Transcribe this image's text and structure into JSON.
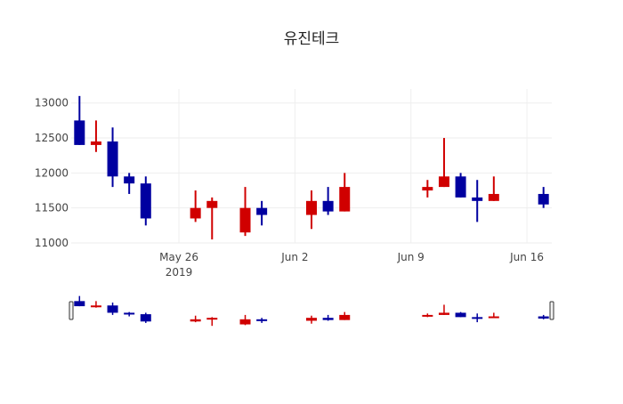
{
  "chart_data": {
    "type": "candlestick",
    "title": "유진테크",
    "ylim": [
      11000,
      13200
    ],
    "yticks": [
      11000,
      11500,
      12000,
      12500,
      13000
    ],
    "ytick_labels": [
      "11000",
      "11500",
      "12000",
      "12500",
      "13000"
    ],
    "xrange": [
      "2019-05-19T12:00",
      "2019-06-17T12:00"
    ],
    "xticks": [
      {
        "date": "2019-05-26",
        "label": "May 26",
        "sublabel": "2019"
      },
      {
        "date": "2019-06-02",
        "label": "Jun 2"
      },
      {
        "date": "2019-06-09",
        "label": "Jun 9"
      },
      {
        "date": "2019-06-16",
        "label": "Jun 16"
      }
    ],
    "increasing_color": "#d00000",
    "decreasing_color": "#0000a0",
    "rangeslider": true,
    "candles": [
      {
        "date": "2019-05-20",
        "open": 12750,
        "high": 13100,
        "low": 12400,
        "close": 12400
      },
      {
        "date": "2019-05-21",
        "open": 12400,
        "high": 12750,
        "low": 12300,
        "close": 12450
      },
      {
        "date": "2019-05-22",
        "open": 12450,
        "high": 12650,
        "low": 11800,
        "close": 11950
      },
      {
        "date": "2019-05-23",
        "open": 11950,
        "high": 12000,
        "low": 11700,
        "close": 11850
      },
      {
        "date": "2019-05-24",
        "open": 11850,
        "high": 11950,
        "low": 11250,
        "close": 11350
      },
      {
        "date": "2019-05-27",
        "open": 11350,
        "high": 11750,
        "low": 11300,
        "close": 11500
      },
      {
        "date": "2019-05-28",
        "open": 11500,
        "high": 11650,
        "low": 11050,
        "close": 11600
      },
      {
        "date": "2019-05-30",
        "open": 11150,
        "high": 11800,
        "low": 11100,
        "close": 11500
      },
      {
        "date": "2019-05-31",
        "open": 11500,
        "high": 11600,
        "low": 11250,
        "close": 11400
      },
      {
        "date": "2019-06-03",
        "open": 11400,
        "high": 11750,
        "low": 11200,
        "close": 11600
      },
      {
        "date": "2019-06-04",
        "open": 11600,
        "high": 11800,
        "low": 11400,
        "close": 11450
      },
      {
        "date": "2019-06-05",
        "open": 11450,
        "high": 12000,
        "low": 11450,
        "close": 11800
      },
      {
        "date": "2019-06-10",
        "open": 11750,
        "high": 11900,
        "low": 11650,
        "close": 11800
      },
      {
        "date": "2019-06-11",
        "open": 11800,
        "high": 12500,
        "low": 11800,
        "close": 11950
      },
      {
        "date": "2019-06-12",
        "open": 11950,
        "high": 12000,
        "low": 11650,
        "close": 11650
      },
      {
        "date": "2019-06-13",
        "open": 11650,
        "high": 11900,
        "low": 11300,
        "close": 11600
      },
      {
        "date": "2019-06-14",
        "open": 11600,
        "high": 11950,
        "low": 11600,
        "close": 11700
      },
      {
        "date": "2019-06-17",
        "open": 11700,
        "high": 11800,
        "low": 11500,
        "close": 11550
      }
    ]
  }
}
